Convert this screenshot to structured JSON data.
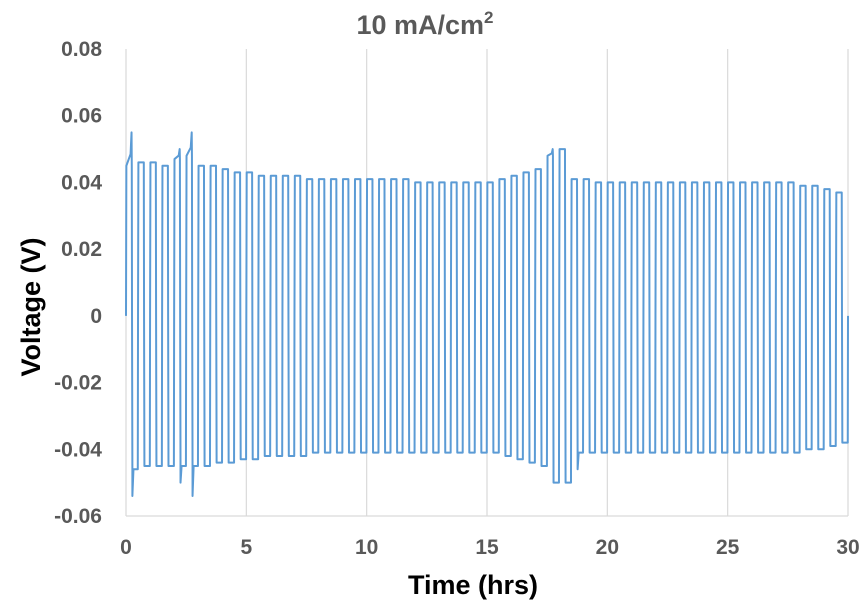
{
  "chart_data": {
    "type": "line",
    "title_main": "10 mA/cm",
    "title_sup": "2",
    "xlabel": "Time (hrs)",
    "ylabel": "Voltage (V)",
    "xlim": [
      0,
      30
    ],
    "ylim": [
      -0.06,
      0.08
    ],
    "x_ticks": [
      0,
      5,
      10,
      15,
      20,
      25,
      30
    ],
    "x_tick_labels": [
      "0",
      "5",
      "10",
      "15",
      "20",
      "25",
      "30"
    ],
    "y_ticks": [
      -0.06,
      -0.04,
      -0.02,
      0,
      0.02,
      0.04,
      0.06,
      0.08
    ],
    "y_tick_labels": [
      "-0.06",
      "-0.04",
      "-0.02",
      "0",
      "0.02",
      "0.04",
      "0.06",
      "0.08"
    ],
    "grid": "vertical",
    "legend": "none",
    "colors": {
      "series": "#5b9bd5",
      "grid": "#d9d9d9",
      "tick_text": "#595959",
      "axis_title": "#000000"
    },
    "series": [
      {
        "cycle_period_hrs": 0.5,
        "cycle_starts_hrs": [
          0.0,
          0.5,
          1.0,
          1.5,
          2.0,
          2.5,
          3.0,
          3.5,
          4.0,
          4.5,
          5.0,
          5.5,
          6.0,
          6.5,
          7.0,
          7.5,
          8.0,
          8.5,
          9.0,
          9.5,
          10.0,
          10.5,
          11.0,
          11.5,
          12.0,
          12.5,
          13.0,
          13.5,
          14.0,
          14.5,
          15.0,
          15.5,
          16.0,
          16.5,
          17.0,
          17.5,
          18.0,
          18.5,
          19.0,
          19.5,
          20.0,
          20.5,
          21.0,
          21.5,
          22.0,
          22.5,
          23.0,
          23.5,
          24.0,
          24.5,
          25.0,
          25.5,
          26.0,
          26.5,
          27.0,
          27.5,
          28.0,
          28.5,
          29.0,
          29.5
        ],
        "positive_plateau_V": [
          0.045,
          0.046,
          0.046,
          0.045,
          0.047,
          0.048,
          0.045,
          0.045,
          0.044,
          0.043,
          0.043,
          0.042,
          0.042,
          0.042,
          0.042,
          0.041,
          0.041,
          0.041,
          0.041,
          0.041,
          0.041,
          0.041,
          0.041,
          0.041,
          0.04,
          0.04,
          0.04,
          0.04,
          0.04,
          0.04,
          0.04,
          0.041,
          0.042,
          0.043,
          0.044,
          0.048,
          0.05,
          0.041,
          0.041,
          0.04,
          0.04,
          0.04,
          0.04,
          0.04,
          0.04,
          0.04,
          0.04,
          0.04,
          0.04,
          0.04,
          0.04,
          0.04,
          0.04,
          0.04,
          0.04,
          0.04,
          0.039,
          0.039,
          0.038,
          0.037
        ],
        "positive_spike_V": [
          0.055,
          null,
          null,
          null,
          0.05,
          0.055,
          null,
          null,
          null,
          null,
          null,
          null,
          null,
          null,
          null,
          null,
          null,
          null,
          null,
          null,
          null,
          null,
          null,
          null,
          null,
          null,
          null,
          null,
          null,
          null,
          null,
          null,
          null,
          null,
          null,
          0.05,
          null,
          null,
          null,
          null,
          null,
          null,
          null,
          null,
          null,
          null,
          null,
          null,
          null,
          null,
          null,
          null,
          null,
          null,
          null,
          null,
          null,
          null,
          null,
          null
        ],
        "negative_plateau_V": [
          -0.046,
          -0.045,
          -0.045,
          -0.045,
          -0.045,
          -0.045,
          -0.045,
          -0.044,
          -0.044,
          -0.043,
          -0.043,
          -0.042,
          -0.042,
          -0.042,
          -0.042,
          -0.041,
          -0.041,
          -0.041,
          -0.041,
          -0.041,
          -0.041,
          -0.041,
          -0.041,
          -0.041,
          -0.041,
          -0.041,
          -0.041,
          -0.041,
          -0.041,
          -0.041,
          -0.041,
          -0.042,
          -0.043,
          -0.044,
          -0.045,
          -0.05,
          -0.05,
          -0.041,
          -0.041,
          -0.041,
          -0.041,
          -0.041,
          -0.041,
          -0.041,
          -0.041,
          -0.041,
          -0.041,
          -0.041,
          -0.041,
          -0.041,
          -0.041,
          -0.041,
          -0.041,
          -0.041,
          -0.041,
          -0.041,
          -0.04,
          -0.04,
          -0.039,
          -0.038
        ],
        "negative_spike_V": [
          -0.054,
          null,
          null,
          null,
          -0.05,
          -0.054,
          null,
          null,
          null,
          null,
          null,
          null,
          null,
          null,
          null,
          null,
          null,
          null,
          null,
          null,
          null,
          null,
          null,
          null,
          null,
          null,
          null,
          null,
          null,
          null,
          null,
          null,
          null,
          null,
          null,
          null,
          null,
          -0.046,
          null,
          null,
          null,
          null,
          null,
          null,
          null,
          null,
          null,
          null,
          null,
          null,
          null,
          null,
          null,
          null,
          null,
          null,
          null,
          null,
          null,
          null
        ]
      }
    ]
  }
}
